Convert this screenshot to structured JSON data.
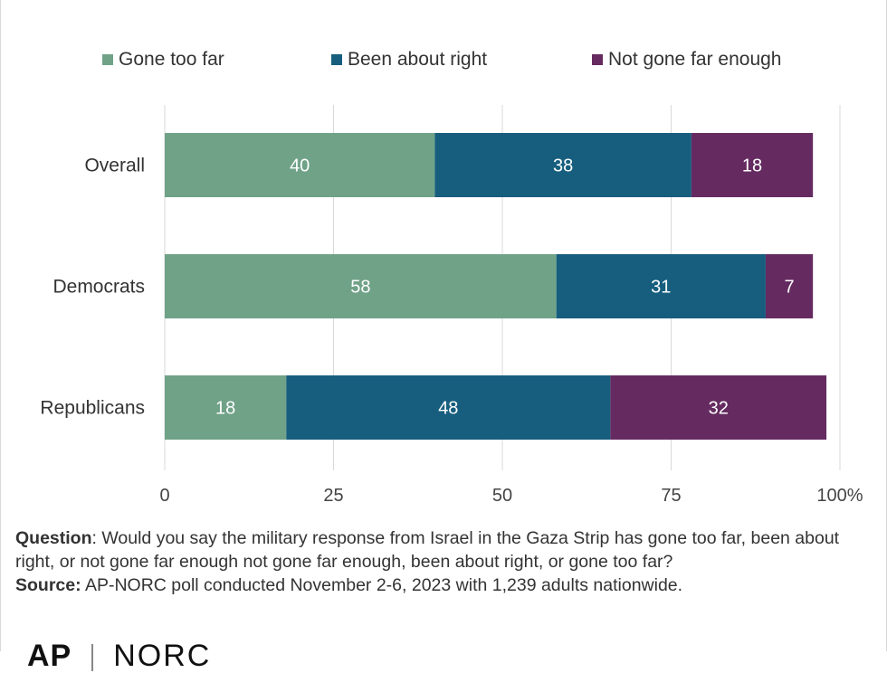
{
  "chart_data": {
    "type": "bar",
    "orientation": "horizontal",
    "stacked": true,
    "categories": [
      "Overall",
      "Democrats",
      "Republicans"
    ],
    "series": [
      {
        "name": "Gone too far",
        "color": "#70a288",
        "values": [
          40,
          58,
          18
        ]
      },
      {
        "name": "Been about right",
        "color": "#175e7e",
        "values": [
          38,
          31,
          48
        ]
      },
      {
        "name": "Not gone far enough",
        "color": "#652b61",
        "values": [
          18,
          7,
          32
        ]
      }
    ],
    "xticks": [
      "0",
      "25",
      "50",
      "75",
      "100%"
    ],
    "xtick_values": [
      0,
      25,
      50,
      75,
      100
    ],
    "xlim": [
      0,
      100
    ],
    "grid": true,
    "legend_position": "top",
    "label_color": "#ffffff"
  },
  "footnote": {
    "question_label": "Question",
    "question_text": ": Would you say the military response from Israel in the Gaza Strip has gone too far, been about right, or not gone far enough not gone far enough, been about right, or gone too far?",
    "source_label": "Source:",
    "source_text": " AP-NORC poll conducted November 2-6, 2023 with 1,239 adults nationwide."
  },
  "logo": {
    "left": "AP",
    "right": "NORC"
  }
}
